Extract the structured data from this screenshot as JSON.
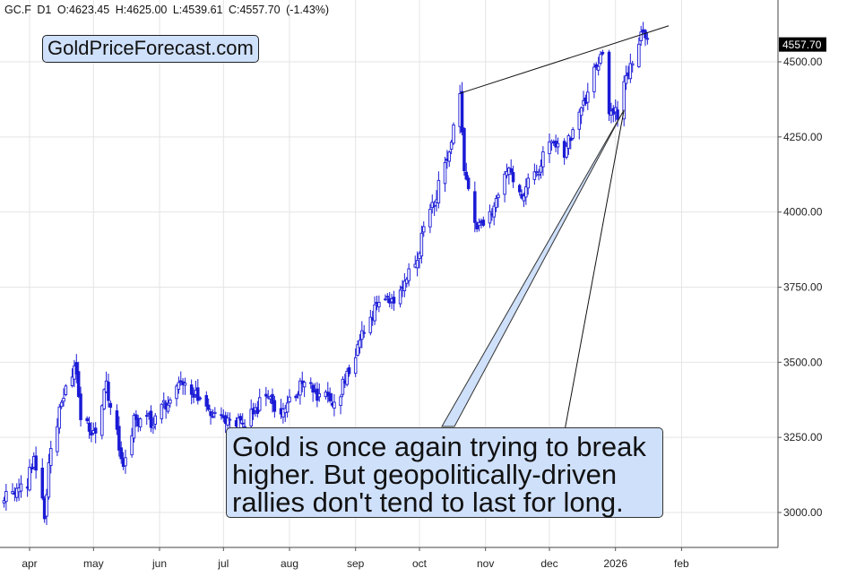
{
  "header": {
    "symbol": "GC.F",
    "timeframe": "D1",
    "open": "O:4623.45",
    "high": "H:4625.00",
    "low": "L:4539.61",
    "close": "C:4557.70",
    "change": "(-1.43%)"
  },
  "brand": "GoldPriceForecast.com",
  "callout": {
    "line1": "Gold is once again trying to break",
    "line2": "higher. But geopolitically-driven",
    "line3": "rallies don't tend to last for long."
  },
  "colors": {
    "candle": "#1a1ad6",
    "grid": "#e4e4e4",
    "callout_bg": "#cfe0fb",
    "price_tag_bg": "#000000"
  },
  "chart_data": {
    "type": "candlestick",
    "y_tick_labels": [
      "3000.00",
      "3250.00",
      "3500.00",
      "3750.00",
      "4000.00",
      "4250.00",
      "4500.00"
    ],
    "x_tick_labels": [
      "apr",
      "may",
      "jun",
      "jul",
      "aug",
      "sep",
      "oct",
      "nov",
      "dec",
      "2026",
      "feb"
    ],
    "current_price_label": "4557.70",
    "ylim": [
      2890,
      4630
    ],
    "xlim": [
      "2025-03-20",
      "2026-02-12"
    ],
    "grid": true,
    "x_ticks": [
      [
        "2025-04-01",
        0
      ],
      [
        "2025-05-01",
        1
      ],
      [
        "2025-06-01",
        2
      ],
      [
        "2025-07-01",
        3
      ],
      [
        "2025-08-01",
        4
      ],
      [
        "2025-09-01",
        5
      ],
      [
        "2025-10-01",
        6
      ],
      [
        "2025-11-01",
        7
      ],
      [
        "2025-12-01",
        8
      ],
      [
        "2026-01-01",
        9
      ],
      [
        "2026-02-01",
        10
      ]
    ],
    "y_ticks": [
      [
        3000,
        0
      ],
      [
        3250,
        1
      ],
      [
        3500,
        2
      ],
      [
        3750,
        3
      ],
      [
        4000,
        4
      ],
      [
        4250,
        5
      ],
      [
        4500,
        6
      ]
    ],
    "price_path": [
      [
        "2025-03-20",
        3050
      ],
      [
        "2025-03-31",
        3100
      ],
      [
        "2025-04-03",
        3180
      ],
      [
        "2025-04-08",
        2985
      ],
      [
        "2025-04-11",
        3230
      ],
      [
        "2025-04-17",
        3380
      ],
      [
        "2025-04-22",
        3490
      ],
      [
        "2025-04-25",
        3330
      ],
      [
        "2025-05-02",
        3260
      ],
      [
        "2025-05-07",
        3420
      ],
      [
        "2025-05-15",
        3160
      ],
      [
        "2025-05-20",
        3300
      ],
      [
        "2025-05-30",
        3310
      ],
      [
        "2025-06-05",
        3380
      ],
      [
        "2025-06-13",
        3440
      ],
      [
        "2025-06-20",
        3370
      ],
      [
        "2025-06-30",
        3300
      ],
      [
        "2025-07-04",
        3330
      ],
      [
        "2025-07-10",
        3290
      ],
      [
        "2025-07-22",
        3400
      ],
      [
        "2025-07-25",
        3340
      ],
      [
        "2025-08-01",
        3360
      ],
      [
        "2025-08-08",
        3450
      ],
      [
        "2025-08-13",
        3390
      ],
      [
        "2025-08-22",
        3370
      ],
      [
        "2025-08-28",
        3450
      ],
      [
        "2025-09-02",
        3560
      ],
      [
        "2025-09-10",
        3680
      ],
      [
        "2025-09-17",
        3700
      ],
      [
        "2025-09-23",
        3760
      ],
      [
        "2025-09-30",
        3860
      ],
      [
        "2025-10-08",
        4040
      ],
      [
        "2025-10-15",
        4200
      ],
      [
        "2025-10-20",
        4370
      ],
      [
        "2025-10-22",
        4120
      ],
      [
        "2025-10-28",
        3960
      ],
      [
        "2025-11-04",
        3980
      ],
      [
        "2025-11-12",
        4150
      ],
      [
        "2025-11-18",
        4060
      ],
      [
        "2025-11-25",
        4130
      ],
      [
        "2025-12-01",
        4230
      ],
      [
        "2025-12-08",
        4200
      ],
      [
        "2025-12-15",
        4320
      ],
      [
        "2025-12-22",
        4460
      ],
      [
        "2025-12-26",
        4540
      ],
      [
        "2025-12-29",
        4350
      ],
      [
        "2026-01-02",
        4330
      ],
      [
        "2026-01-06",
        4460
      ],
      [
        "2026-01-09",
        4500
      ],
      [
        "2026-01-14",
        4600
      ],
      [
        "2026-01-16",
        4557.7
      ]
    ],
    "trendlines": [
      {
        "from": [
          "2025-10-20",
          4395
        ],
        "to": [
          "2026-01-26",
          4620
        ]
      },
      {
        "from": [
          "2026-01-05",
          4340
        ],
        "to": [
          "2025-12-06",
          3190
        ]
      }
    ]
  }
}
